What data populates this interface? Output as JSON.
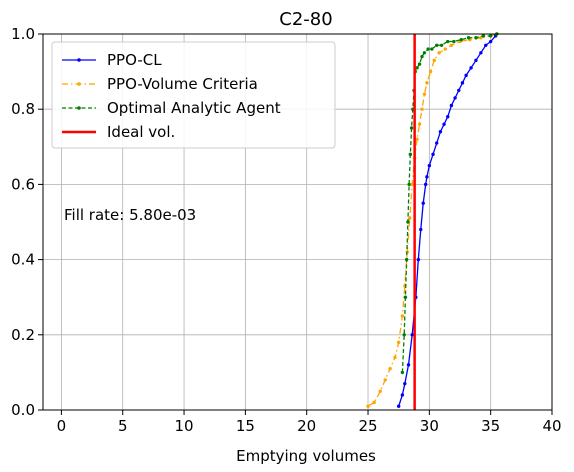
{
  "chart_data": {
    "type": "line",
    "title": "C2-80",
    "xlabel": "Emptying volumes",
    "ylabel": "",
    "xlim": [
      -1.5,
      40
    ],
    "ylim": [
      0,
      1
    ],
    "xticks": [
      0,
      5,
      10,
      15,
      20,
      25,
      30,
      35,
      40
    ],
    "yticks": [
      0.0,
      0.2,
      0.4,
      0.6,
      0.8,
      1.0
    ],
    "xtick_labels": [
      "0",
      "5",
      "10",
      "15",
      "20",
      "25",
      "30",
      "35",
      "40"
    ],
    "ytick_labels": [
      "0.0",
      "0.2",
      "0.4",
      "0.6",
      "0.8",
      "1.0"
    ],
    "grid": true,
    "legend_position": "top-left",
    "annotation": "Fill rate: 5.80e-03",
    "ideal_volume": 28.8,
    "series": [
      {
        "name": "PPO-CL",
        "color": "#0000ff",
        "style": "solid-dot",
        "x": [
          27.5,
          27.8,
          28.0,
          28.3,
          28.6,
          28.9,
          29.1,
          29.3,
          29.5,
          29.7,
          29.8,
          30.0,
          30.3,
          30.6,
          30.9,
          31.2,
          31.5,
          31.8,
          32.1,
          32.4,
          32.7,
          33.0,
          33.4,
          33.8,
          34.2,
          34.6,
          35.0,
          35.4
        ],
        "y": [
          0.01,
          0.04,
          0.07,
          0.12,
          0.2,
          0.3,
          0.4,
          0.48,
          0.55,
          0.6,
          0.62,
          0.65,
          0.68,
          0.71,
          0.74,
          0.76,
          0.78,
          0.81,
          0.83,
          0.85,
          0.87,
          0.89,
          0.91,
          0.93,
          0.95,
          0.97,
          0.98,
          0.995
        ]
      },
      {
        "name": "PPO-Volume Criteria",
        "color": "#ffa500",
        "style": "dashdot-dot",
        "x": [
          25.0,
          25.5,
          26.0,
          26.4,
          26.8,
          27.2,
          27.5,
          27.8,
          28.0,
          28.2,
          28.4,
          28.6,
          28.8,
          29.0,
          29.2,
          29.4,
          29.6,
          29.8,
          30.1,
          30.4,
          30.8,
          31.3,
          31.8,
          32.5,
          33.3,
          34.2,
          35.0,
          35.5
        ],
        "y": [
          0.01,
          0.02,
          0.05,
          0.08,
          0.11,
          0.14,
          0.18,
          0.25,
          0.33,
          0.42,
          0.51,
          0.6,
          0.67,
          0.72,
          0.76,
          0.8,
          0.84,
          0.87,
          0.9,
          0.93,
          0.95,
          0.96,
          0.97,
          0.98,
          0.985,
          0.99,
          0.995,
          1.0
        ]
      },
      {
        "name": "Optimal Analytic Agent",
        "color": "#008000",
        "style": "dashed-dot",
        "x": [
          27.8,
          27.95,
          28.05,
          28.15,
          28.25,
          28.35,
          28.45,
          28.55,
          28.65,
          28.75,
          28.85,
          29.0,
          29.2,
          29.4,
          29.6,
          29.9,
          30.2,
          30.6,
          31.0,
          31.5,
          32.0,
          32.6,
          33.2,
          33.8,
          34.4,
          35.0,
          35.5
        ],
        "y": [
          0.1,
          0.2,
          0.3,
          0.4,
          0.5,
          0.6,
          0.68,
          0.75,
          0.8,
          0.85,
          0.9,
          0.91,
          0.92,
          0.94,
          0.95,
          0.96,
          0.96,
          0.97,
          0.97,
          0.98,
          0.98,
          0.985,
          0.99,
          0.99,
          0.995,
          0.995,
          1.0
        ]
      },
      {
        "name": "Ideal vol.",
        "color": "#ff0000",
        "style": "vline",
        "x": [
          28.8,
          28.8
        ],
        "y": [
          0,
          1
        ]
      }
    ]
  }
}
